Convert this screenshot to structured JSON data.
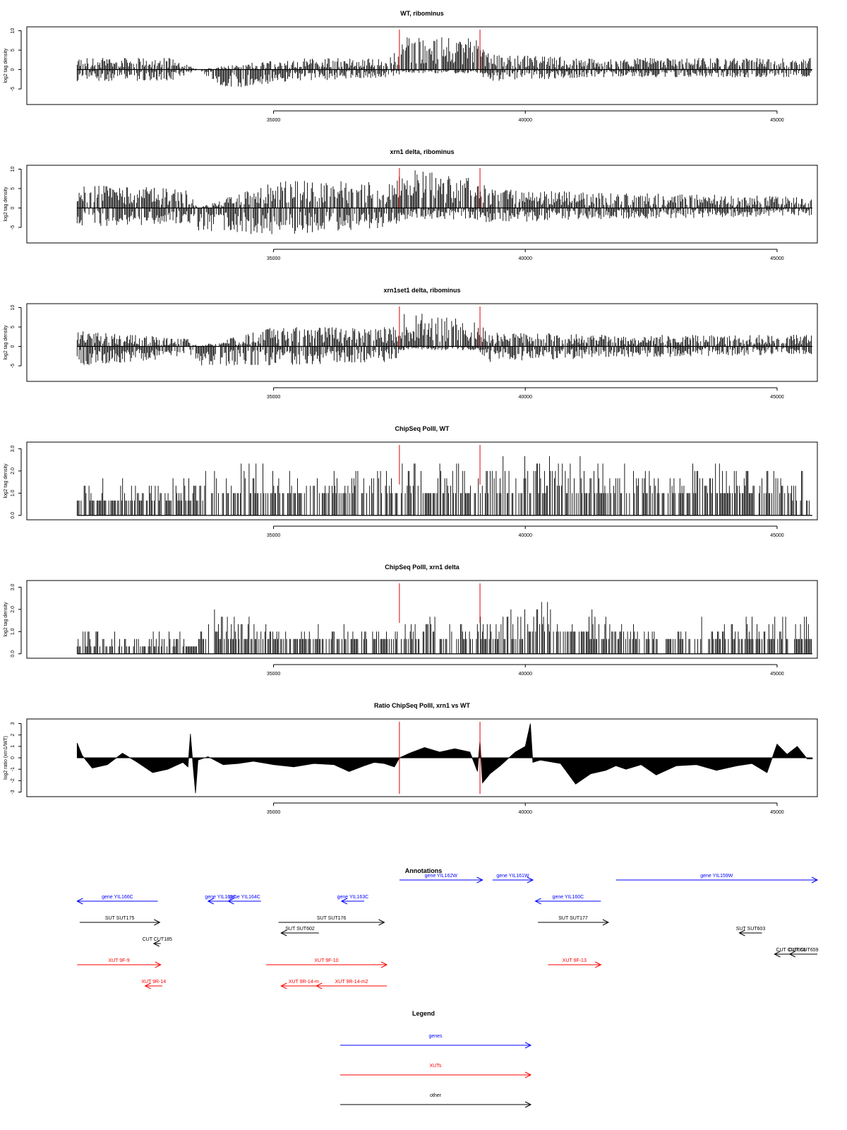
{
  "chart_data": [
    {
      "type": "bar",
      "title": "WT, ribominus",
      "xlabel": "",
      "ylabel": "log2 tag density",
      "xlim": [
        30100,
        45800
      ],
      "ylim": [
        -9,
        11
      ],
      "yticks": [
        "-5",
        "0",
        "5",
        "10"
      ],
      "xticks": [
        "35000",
        "40000",
        "45000"
      ],
      "grid": false,
      "markers": [
        37500,
        39100
      ],
      "data_range": [
        31100,
        45700
      ],
      "envelope": [
        {
          "x": 31100,
          "up": 3,
          "down": -3
        },
        {
          "x": 33000,
          "up": 3,
          "down": -3
        },
        {
          "x": 33500,
          "up": 0,
          "down": 0
        },
        {
          "x": 34000,
          "up": 1,
          "down": -5
        },
        {
          "x": 35500,
          "up": 3,
          "down": -3
        },
        {
          "x": 37300,
          "up": 3,
          "down": -2
        },
        {
          "x": 37600,
          "up": 9,
          "down": -1
        },
        {
          "x": 39000,
          "up": 8,
          "down": -1
        },
        {
          "x": 39300,
          "up": 4,
          "down": -3
        },
        {
          "x": 41500,
          "up": 3,
          "down": -2
        },
        {
          "x": 45700,
          "up": 3,
          "down": -2
        }
      ]
    },
    {
      "type": "bar",
      "title": "xrn1 delta, ribominus",
      "xlabel": "",
      "ylabel": "log2 tag density",
      "xlim": [
        30100,
        45800
      ],
      "ylim": [
        -9,
        11
      ],
      "yticks": [
        "-5",
        "0",
        "5",
        "10"
      ],
      "xticks": [
        "35000",
        "40000",
        "45000"
      ],
      "grid": false,
      "markers": [
        37500,
        39100
      ],
      "data_range": [
        31100,
        45700
      ],
      "envelope": [
        {
          "x": 31100,
          "up": 6,
          "down": -5
        },
        {
          "x": 33300,
          "up": 5,
          "down": -4
        },
        {
          "x": 33500,
          "up": 0,
          "down": -6
        },
        {
          "x": 35000,
          "up": 7,
          "down": -7
        },
        {
          "x": 37400,
          "up": 7,
          "down": -5
        },
        {
          "x": 37600,
          "up": 10,
          "down": -3
        },
        {
          "x": 39000,
          "up": 8,
          "down": -3
        },
        {
          "x": 39300,
          "up": 5,
          "down": -4
        },
        {
          "x": 41500,
          "up": 4,
          "down": -3
        },
        {
          "x": 45700,
          "up": 3,
          "down": -2
        }
      ]
    },
    {
      "type": "bar",
      "title": "xrn1set1 delta, ribominus",
      "xlabel": "",
      "ylabel": "log2 tag density",
      "xlim": [
        30100,
        45800
      ],
      "ylim": [
        -9,
        11
      ],
      "yticks": [
        "-5",
        "0",
        "5",
        "10"
      ],
      "xticks": [
        "35000",
        "40000",
        "45000"
      ],
      "grid": false,
      "markers": [
        37500,
        39100
      ],
      "data_range": [
        31100,
        45700
      ],
      "envelope": [
        {
          "x": 31100,
          "up": 4,
          "down": -5
        },
        {
          "x": 33300,
          "up": 2,
          "down": -3
        },
        {
          "x": 33500,
          "up": 0,
          "down": -5
        },
        {
          "x": 35000,
          "up": 5,
          "down": -5
        },
        {
          "x": 37400,
          "up": 5,
          "down": -4
        },
        {
          "x": 37600,
          "up": 9,
          "down": -1
        },
        {
          "x": 39000,
          "up": 7,
          "down": -1
        },
        {
          "x": 39300,
          "up": 4,
          "down": -4
        },
        {
          "x": 41500,
          "up": 3,
          "down": -3
        },
        {
          "x": 45700,
          "up": 3,
          "down": -2
        }
      ]
    },
    {
      "type": "bar",
      "title": "ChipSeq PolII, WT",
      "xlabel": "",
      "ylabel": "log2 tag density",
      "xlim": [
        30100,
        45800
      ],
      "ylim": [
        -0.2,
        3.3
      ],
      "yticks": [
        "0.0",
        "1.0",
        "2.0",
        "3.0"
      ],
      "xticks": [
        "35000",
        "40000",
        "45000"
      ],
      "grid": false,
      "markers": [
        37500,
        39100
      ],
      "data_range": [
        31100,
        45700
      ],
      "envelope": [
        {
          "x": 31100,
          "up": 1.6,
          "down": 0
        },
        {
          "x": 33500,
          "up": 1.6,
          "down": 0
        },
        {
          "x": 33700,
          "up": 2.6,
          "down": 0
        },
        {
          "x": 35000,
          "up": 2.3,
          "down": 0
        },
        {
          "x": 37400,
          "up": 2.3,
          "down": 0
        },
        {
          "x": 38000,
          "up": 2.6,
          "down": 0
        },
        {
          "x": 39000,
          "up": 2.3,
          "down": 0
        },
        {
          "x": 40600,
          "up": 3.0,
          "down": 0
        },
        {
          "x": 42000,
          "up": 2.3,
          "down": 0
        },
        {
          "x": 44200,
          "up": 2.3,
          "down": 0
        },
        {
          "x": 45700,
          "up": 2.0,
          "down": 0
        }
      ]
    },
    {
      "type": "bar",
      "title": "ChipSeq PolII, xrn1 delta",
      "xlabel": "",
      "ylabel": "log2 tag density",
      "xlim": [
        30100,
        45800
      ],
      "ylim": [
        -0.2,
        3.3
      ],
      "yticks": [
        "0.0",
        "1.0",
        "2.0",
        "3.0"
      ],
      "xticks": [
        "35000",
        "40000",
        "45000"
      ],
      "grid": false,
      "markers": [
        37500,
        39100
      ],
      "data_range": [
        31100,
        45700
      ],
      "envelope": [
        {
          "x": 31100,
          "up": 1.0,
          "down": 0
        },
        {
          "x": 33500,
          "up": 1.0,
          "down": 0
        },
        {
          "x": 33700,
          "up": 2.2,
          "down": 0
        },
        {
          "x": 35000,
          "up": 1.5,
          "down": 0
        },
        {
          "x": 37400,
          "up": 1.5,
          "down": 0
        },
        {
          "x": 38000,
          "up": 2.2,
          "down": 0
        },
        {
          "x": 39000,
          "up": 1.6,
          "down": 0
        },
        {
          "x": 40800,
          "up": 2.5,
          "down": 0
        },
        {
          "x": 42000,
          "up": 1.4,
          "down": 0
        },
        {
          "x": 44200,
          "up": 1.6,
          "down": 0
        },
        {
          "x": 45700,
          "up": 1.8,
          "down": 0
        }
      ]
    },
    {
      "type": "area",
      "title": "Ratio ChipSeq PolII, xrn1 vs WT",
      "xlabel": "",
      "ylabel": "log2 ratio (xrn1/WT)",
      "xlim": [
        30100,
        45800
      ],
      "ylim": [
        -3.4,
        3.4
      ],
      "yticks": [
        "-3",
        "-2",
        "-1",
        "0",
        "1",
        "2",
        "3"
      ],
      "xticks": [
        "35000",
        "40000",
        "45000"
      ],
      "grid": false,
      "markers": [
        37500,
        39100
      ],
      "x": [
        31100,
        31200,
        31400,
        31700,
        32000,
        32300,
        32600,
        32900,
        33200,
        33300,
        33350,
        33400,
        33450,
        33500,
        33700,
        34000,
        34300,
        34600,
        35000,
        35400,
        35800,
        36200,
        36500,
        36800,
        37000,
        37200,
        37400,
        37500,
        37700,
        38000,
        38300,
        38600,
        38900,
        39050,
        39100,
        39150,
        39300,
        39500,
        39800,
        40000,
        40100,
        40150,
        40300,
        40700,
        41000,
        41300,
        41600,
        41800,
        42000,
        42300,
        42600,
        43000,
        43400,
        43800,
        44200,
        44500,
        44800,
        45000,
        45200,
        45400,
        45600,
        45700
      ],
      "values": [
        1.3,
        0.2,
        -0.9,
        -0.6,
        0.4,
        -0.4,
        -1.3,
        -1.0,
        -0.4,
        -0.8,
        2.1,
        -0.6,
        -3.1,
        -0.2,
        0.1,
        -0.6,
        -0.5,
        -0.3,
        -0.6,
        -0.8,
        -0.5,
        -0.6,
        -1.2,
        -0.7,
        -0.4,
        -0.5,
        -0.8,
        0.0,
        0.4,
        0.9,
        0.5,
        0.8,
        0.5,
        -1.2,
        1.5,
        -2.2,
        -1.4,
        -0.7,
        0.5,
        1.0,
        3.0,
        -0.4,
        -0.2,
        -0.5,
        -2.3,
        -1.4,
        -1.1,
        -0.7,
        -1.0,
        -0.6,
        -1.5,
        -0.7,
        -0.6,
        -1.1,
        -0.7,
        -0.5,
        -1.3,
        1.2,
        0.3,
        1.0,
        -0.1,
        -0.1
      ]
    }
  ],
  "annotations": {
    "title": "Annotations",
    "xlim": [
      30100,
      45800
    ],
    "colors": {
      "genes": "#0000ff",
      "XUTs": "#ff0000",
      "other": "#000000"
    },
    "features": [
      {
        "label": "gene YIL166C",
        "kind": "genes",
        "start": 31100,
        "end": 32700,
        "dir": "left",
        "row": 0
      },
      {
        "label": "gene YIL165C",
        "kind": "genes",
        "start": 33700,
        "end": 34200,
        "dir": "left",
        "row": 0
      },
      {
        "label": "gene YIL164C",
        "kind": "genes",
        "start": 34100,
        "end": 34750,
        "dir": "left",
        "row": 0
      },
      {
        "label": "gene YIL163C",
        "kind": "genes",
        "start": 36350,
        "end": 36800,
        "dir": "left",
        "row": 0
      },
      {
        "label": "gene YIL162W",
        "kind": "genes",
        "start": 37500,
        "end": 39150,
        "dir": "right",
        "row": -1
      },
      {
        "label": "gene YIL161W",
        "kind": "genes",
        "start": 39350,
        "end": 40150,
        "dir": "right",
        "row": -1
      },
      {
        "label": "gene YIL160C",
        "kind": "genes",
        "start": 40200,
        "end": 41500,
        "dir": "left",
        "row": 0
      },
      {
        "label": "gene YIL159W",
        "kind": "genes",
        "start": 41800,
        "end": 45800,
        "dir": "right",
        "row": -1
      },
      {
        "label": "SUT SUT175",
        "kind": "other",
        "start": 31150,
        "end": 32740,
        "dir": "right",
        "row": 1
      },
      {
        "label": "CUT CUT185",
        "kind": "other",
        "start": 32620,
        "end": 32760,
        "dir": "left",
        "row": 2
      },
      {
        "label": "SUT SUT176",
        "kind": "other",
        "start": 35100,
        "end": 37200,
        "dir": "right",
        "row": 1
      },
      {
        "label": "SUT SUT602",
        "kind": "other",
        "start": 35150,
        "end": 35900,
        "dir": "left",
        "row": 1.5
      },
      {
        "label": "SUT SUT177",
        "kind": "other",
        "start": 40250,
        "end": 41650,
        "dir": "right",
        "row": 1
      },
      {
        "label": "SUT SUT603",
        "kind": "other",
        "start": 44250,
        "end": 44700,
        "dir": "left",
        "row": 1.5
      },
      {
        "label": "CUT CUT658",
        "kind": "other",
        "start": 44950,
        "end": 45600,
        "dir": "left",
        "row": 2.5
      },
      {
        "label": "CUT CUT659",
        "kind": "other",
        "start": 45250,
        "end": 45800,
        "dir": "left",
        "row": 2.5
      },
      {
        "label": "XUT 9F-9",
        "kind": "XUTs",
        "start": 31100,
        "end": 32760,
        "dir": "right",
        "row": 3
      },
      {
        "label": "XUT 9R-14",
        "kind": "XUTs",
        "start": 32450,
        "end": 32790,
        "dir": "left",
        "row": 4
      },
      {
        "label": "XUT 9F-10",
        "kind": "XUTs",
        "start": 34850,
        "end": 37250,
        "dir": "right",
        "row": 3
      },
      {
        "label": "XUT 9R-14-m",
        "kind": "XUTs",
        "start": 35150,
        "end": 36050,
        "dir": "left",
        "row": 4
      },
      {
        "label": "XUT 9R-14-m2",
        "kind": "XUTs",
        "start": 35850,
        "end": 37250,
        "dir": "left",
        "row": 4
      },
      {
        "label": "XUT 9F-13",
        "kind": "XUTs",
        "start": 40450,
        "end": 41500,
        "dir": "right",
        "row": 3
      }
    ]
  },
  "legend": {
    "title": "Legend",
    "items": [
      {
        "label": "genes",
        "color": "#0000ff"
      },
      {
        "label": "XUTs",
        "color": "#ff0000"
      },
      {
        "label": "other",
        "color": "#000000"
      }
    ]
  }
}
